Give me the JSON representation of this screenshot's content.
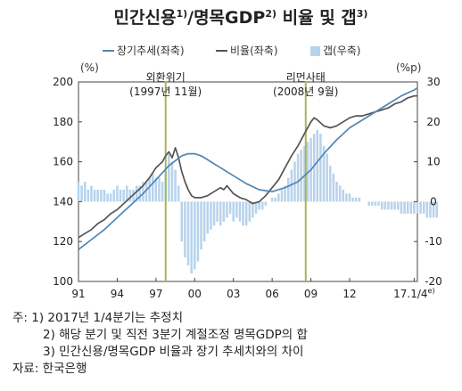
{
  "chart_data": {
    "type": "line",
    "title": {
      "main": "민간신용",
      "sup1": "1)",
      "mid": "/명목GDP",
      "sup2": "2)",
      "rest": " 비율 및 갭",
      "sup3": "3)"
    },
    "legend": {
      "placement": "top",
      "items": [
        {
          "label": "장기추세(좌축)",
          "kind": "line",
          "color": "#4f86b5"
        },
        {
          "label": "비율(좌축)",
          "kind": "line",
          "color": "#555555"
        },
        {
          "label": "갭(우축)",
          "kind": "bar",
          "color": "#b8d3ec"
        }
      ]
    },
    "left_axis": {
      "unit": "(%)",
      "min": 100,
      "max": 200,
      "ticks": [
        "100",
        "120",
        "140",
        "160",
        "180",
        "200"
      ]
    },
    "right_axis": {
      "unit": "(%p)",
      "min": -20,
      "max": 30,
      "ticks": [
        "-20",
        "-10",
        "0",
        "10",
        "20",
        "30"
      ]
    },
    "x_axis": {
      "min": 1991,
      "max": 2017.25,
      "tick_labels": [
        {
          "label": "91",
          "year": 1991
        },
        {
          "label": "94",
          "year": 1994
        },
        {
          "label": "97",
          "year": 1997
        },
        {
          "label": "00",
          "year": 2000
        },
        {
          "label": "03",
          "year": 2003
        },
        {
          "label": "06",
          "year": 2006
        },
        {
          "label": "09",
          "year": 2009
        },
        {
          "label": "12",
          "year": 2012
        },
        {
          "label": "17.1/4",
          "year": 2017,
          "sup": "e)"
        }
      ]
    },
    "events": [
      {
        "year": 1997.75,
        "line1": "외환위기",
        "line2": "(1997년 11월)"
      },
      {
        "year": 2008.6,
        "line1": "리먼사태",
        "line2": "(2008년 9월)"
      }
    ],
    "series": [
      {
        "name": "비율(좌축)",
        "axis": "left",
        "color": "#555555",
        "points": [
          [
            1991.0,
            122
          ],
          [
            1991.5,
            124
          ],
          [
            1992.0,
            126
          ],
          [
            1992.5,
            129
          ],
          [
            1993.0,
            131
          ],
          [
            1993.5,
            134
          ],
          [
            1994.0,
            136
          ],
          [
            1994.5,
            139
          ],
          [
            1995.0,
            142
          ],
          [
            1995.5,
            145
          ],
          [
            1996.0,
            148
          ],
          [
            1996.5,
            152
          ],
          [
            1997.0,
            157
          ],
          [
            1997.5,
            160
          ],
          [
            1997.75,
            163
          ],
          [
            1998.0,
            165
          ],
          [
            1998.25,
            162
          ],
          [
            1998.5,
            167
          ],
          [
            1998.75,
            162
          ],
          [
            1999.0,
            155
          ],
          [
            1999.25,
            150
          ],
          [
            1999.5,
            146
          ],
          [
            1999.75,
            143
          ],
          [
            2000.0,
            142
          ],
          [
            2000.5,
            142
          ],
          [
            2001.0,
            143
          ],
          [
            2001.5,
            145
          ],
          [
            2002.0,
            147
          ],
          [
            2002.25,
            146
          ],
          [
            2002.5,
            148
          ],
          [
            2002.75,
            146
          ],
          [
            2003.0,
            144
          ],
          [
            2003.5,
            142
          ],
          [
            2004.0,
            141
          ],
          [
            2004.5,
            139
          ],
          [
            2005.0,
            140
          ],
          [
            2005.5,
            143
          ],
          [
            2006.0,
            147
          ],
          [
            2006.5,
            151
          ],
          [
            2007.0,
            157
          ],
          [
            2007.5,
            163
          ],
          [
            2008.0,
            168
          ],
          [
            2008.5,
            174
          ],
          [
            2009.0,
            180
          ],
          [
            2009.25,
            182
          ],
          [
            2009.5,
            181
          ],
          [
            2010.0,
            178
          ],
          [
            2010.5,
            177
          ],
          [
            2011.0,
            178
          ],
          [
            2011.5,
            180
          ],
          [
            2012.0,
            182
          ],
          [
            2012.5,
            183
          ],
          [
            2013.0,
            183
          ],
          [
            2013.5,
            184
          ],
          [
            2014.0,
            185
          ],
          [
            2014.5,
            186
          ],
          [
            2015.0,
            187
          ],
          [
            2015.5,
            189
          ],
          [
            2016.0,
            190
          ],
          [
            2016.5,
            192
          ],
          [
            2017.0,
            193
          ],
          [
            2017.25,
            193
          ]
        ]
      },
      {
        "name": "장기추세(좌축)",
        "axis": "left",
        "color": "#4f86b5",
        "points": [
          [
            1991.0,
            116
          ],
          [
            1992.0,
            121
          ],
          [
            1993.0,
            126
          ],
          [
            1994.0,
            132
          ],
          [
            1995.0,
            138
          ],
          [
            1996.0,
            144
          ],
          [
            1997.0,
            151
          ],
          [
            1998.0,
            158
          ],
          [
            1999.0,
            163
          ],
          [
            1999.5,
            164
          ],
          [
            2000.0,
            164
          ],
          [
            2000.5,
            163
          ],
          [
            2001.0,
            161
          ],
          [
            2002.0,
            157
          ],
          [
            2003.0,
            153
          ],
          [
            2004.0,
            149
          ],
          [
            2005.0,
            146
          ],
          [
            2006.0,
            145
          ],
          [
            2007.0,
            147
          ],
          [
            2008.0,
            150
          ],
          [
            2009.0,
            156
          ],
          [
            2010.0,
            164
          ],
          [
            2011.0,
            171
          ],
          [
            2012.0,
            177
          ],
          [
            2013.0,
            181
          ],
          [
            2014.0,
            185
          ],
          [
            2015.0,
            189
          ],
          [
            2016.0,
            193
          ],
          [
            2017.0,
            196
          ],
          [
            2017.25,
            197
          ]
        ]
      }
    ],
    "gap": {
      "name": "갭(우축)",
      "axis": "right",
      "color": "#b8d3ec",
      "start": 1991.0,
      "step": 0.25,
      "values": [
        5,
        4,
        5,
        3,
        4,
        3,
        3,
        3,
        3,
        2,
        2,
        3,
        4,
        3,
        3,
        4,
        3,
        3,
        4,
        4,
        5,
        5,
        6,
        7,
        6,
        6,
        5,
        8,
        12,
        10,
        8,
        4,
        -10,
        -14,
        -16,
        -18,
        -17,
        -15,
        -12,
        -10,
        -8,
        -7,
        -6,
        -5,
        -6,
        -5,
        -4,
        -3,
        -5,
        -4,
        -5,
        -6,
        -6,
        -5,
        -4,
        -3,
        -2,
        -2,
        -1,
        0,
        1,
        1,
        2,
        3,
        4,
        6,
        8,
        10,
        12,
        13,
        14,
        15,
        16,
        17,
        18,
        17,
        14,
        12,
        9,
        7,
        5,
        4,
        3,
        2,
        2,
        1,
        1,
        1,
        0,
        0,
        -1,
        -1,
        -1,
        -1,
        -2,
        -2,
        -2,
        -2,
        -2,
        -2,
        -3,
        -3,
        -3,
        -3,
        -3,
        -3,
        -3,
        -3,
        -4,
        -4,
        -4,
        -4
      ]
    }
  },
  "notes": {
    "line1": "주:  1) 2017년 1/4분기는 추정치",
    "line2": "2) 해당 분기 및 직전 3분기 계절조정 명목GDP의 합",
    "line3": "3) 민간신용/명목GDP 비율과 장기 추세치와의 차이",
    "source": "자료: 한국은행"
  }
}
